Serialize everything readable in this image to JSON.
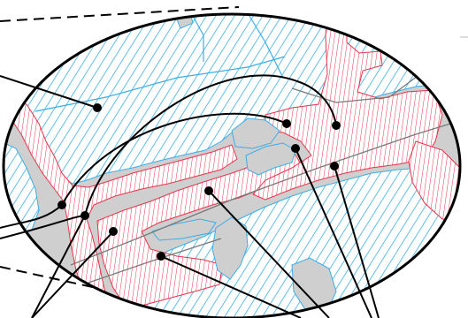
{
  "figure": {
    "type": "map-inset-diagram",
    "legend": null,
    "labels": [],
    "callouts_from_left": 5,
    "callouts_from_bottom_right": 3
  },
  "colors": {
    "background": "#ffffff",
    "land": "#cfcfcf",
    "water_hatch": "#3aaee8",
    "developed_hatch": "#e8334a",
    "outline": "#000000",
    "road": "#7a7a7a"
  },
  "patterns": {
    "water": "diagonal-hatch",
    "developed": "vertical-hatch"
  }
}
